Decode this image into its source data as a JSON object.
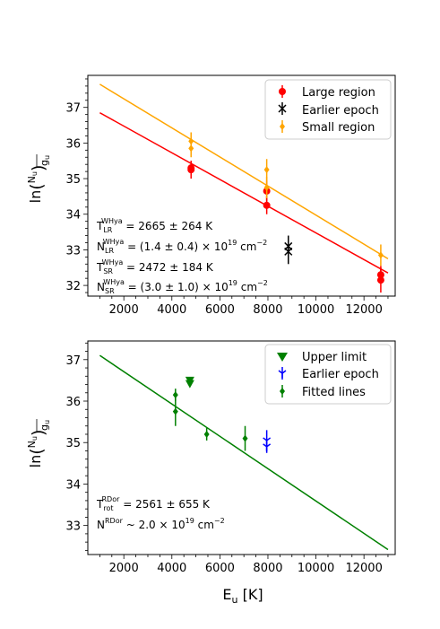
{
  "colors": {
    "large": "#ff0000",
    "earlier": "#000000",
    "small": "#ffa500",
    "green": "#008000",
    "blue": "#0000ff"
  },
  "xlabel": "E_u [K]",
  "chart_data": [
    {
      "type": "scatter",
      "xlim": [
        500,
        13300
      ],
      "ylim": [
        31.7,
        37.9
      ],
      "xticks": [
        2000,
        4000,
        6000,
        8000,
        10000,
        12000
      ],
      "yticks": [
        32,
        33,
        34,
        35,
        36,
        37
      ],
      "ylabel": "ln(N_u/g_u)",
      "legend_position": "top-right",
      "series": [
        {
          "name": "Large region",
          "color": "#ff0000",
          "marker": "circle",
          "points": [
            {
              "x": 4800,
              "y": 35.25,
              "err": 0.25
            },
            {
              "x": 4800,
              "y": 35.3,
              "err": 0.2
            },
            {
              "x": 7950,
              "y": 34.25,
              "err": 0.25
            },
            {
              "x": 7950,
              "y": 34.65,
              "err": 0.3
            },
            {
              "x": 12700,
              "y": 32.15,
              "err": 0.35
            },
            {
              "x": 12700,
              "y": 32.3,
              "err": 0.25
            }
          ]
        },
        {
          "name": "Earlier epoch",
          "color": "#000000",
          "marker": "x",
          "points": [
            {
              "x": 8850,
              "y": 33.1,
              "err": 0.3
            },
            {
              "x": 8850,
              "y": 32.95,
              "err": 0.35
            }
          ]
        },
        {
          "name": "Small region",
          "color": "#ffa500",
          "marker": "diamond",
          "points": [
            {
              "x": 4800,
              "y": 36.05,
              "err": 0.25
            },
            {
              "x": 4800,
              "y": 35.85,
              "err": 0.25
            },
            {
              "x": 7950,
              "y": 35.25,
              "err": 0.3
            },
            {
              "x": 7950,
              "y": 34.75,
              "err": 0.3
            },
            {
              "x": 12700,
              "y": 32.85,
              "err": 0.3
            }
          ]
        }
      ],
      "fits": [
        {
          "color": "#ff0000",
          "x": [
            1000,
            13000
          ],
          "y": [
            36.85,
            32.35
          ]
        },
        {
          "color": "#ffa500",
          "x": [
            1000,
            13000
          ],
          "y": [
            37.65,
            32.75
          ]
        }
      ],
      "annotations": [
        "T_LR^WHya = 2665 ± 264 K",
        "N_LR^WHya = (1.4 ± 0.4) × 10^19 cm^-2",
        "T_SR^WHya = 2472 ± 184 K",
        "N_SR^WHya = (3.0 ± 1.0) × 10^19 cm^-2"
      ]
    },
    {
      "type": "scatter",
      "xlim": [
        500,
        13300
      ],
      "ylim": [
        32.3,
        37.45
      ],
      "xticks": [
        2000,
        4000,
        6000,
        8000,
        10000,
        12000
      ],
      "yticks": [
        33,
        34,
        35,
        36,
        37
      ],
      "ylabel": "ln(N_u/g_u)",
      "xlabel": "E_u [K]",
      "legend_position": "top-right",
      "series": [
        {
          "name": "Upper limit",
          "color": "#008000",
          "marker": "triangle-down",
          "points": [
            {
              "x": 4750,
              "y": 36.5
            },
            {
              "x": 4750,
              "y": 36.42
            }
          ]
        },
        {
          "name": "Earlier epoch",
          "color": "#0000ff",
          "marker": "tri",
          "points": [
            {
              "x": 7950,
              "y": 35.05,
              "err": 0.25
            },
            {
              "x": 7950,
              "y": 34.9,
              "err": 0.15
            }
          ]
        },
        {
          "name": "Fitted lines",
          "color": "#008000",
          "marker": "diamond",
          "points": [
            {
              "x": 4150,
              "y": 36.15,
              "err": 0.15
            },
            {
              "x": 4150,
              "y": 35.75,
              "err": 0.35
            },
            {
              "x": 5450,
              "y": 35.2,
              "err": 0.15
            },
            {
              "x": 7050,
              "y": 35.1,
              "err": 0.3
            }
          ]
        }
      ],
      "fits": [
        {
          "color": "#008000",
          "x": [
            1000,
            13000
          ],
          "y": [
            37.1,
            32.42
          ]
        }
      ],
      "annotations": [
        "T_rot^RDor = 2561 ± 655 K",
        "N^RDor ~ 2.0 × 10^19 cm^-2"
      ]
    }
  ]
}
